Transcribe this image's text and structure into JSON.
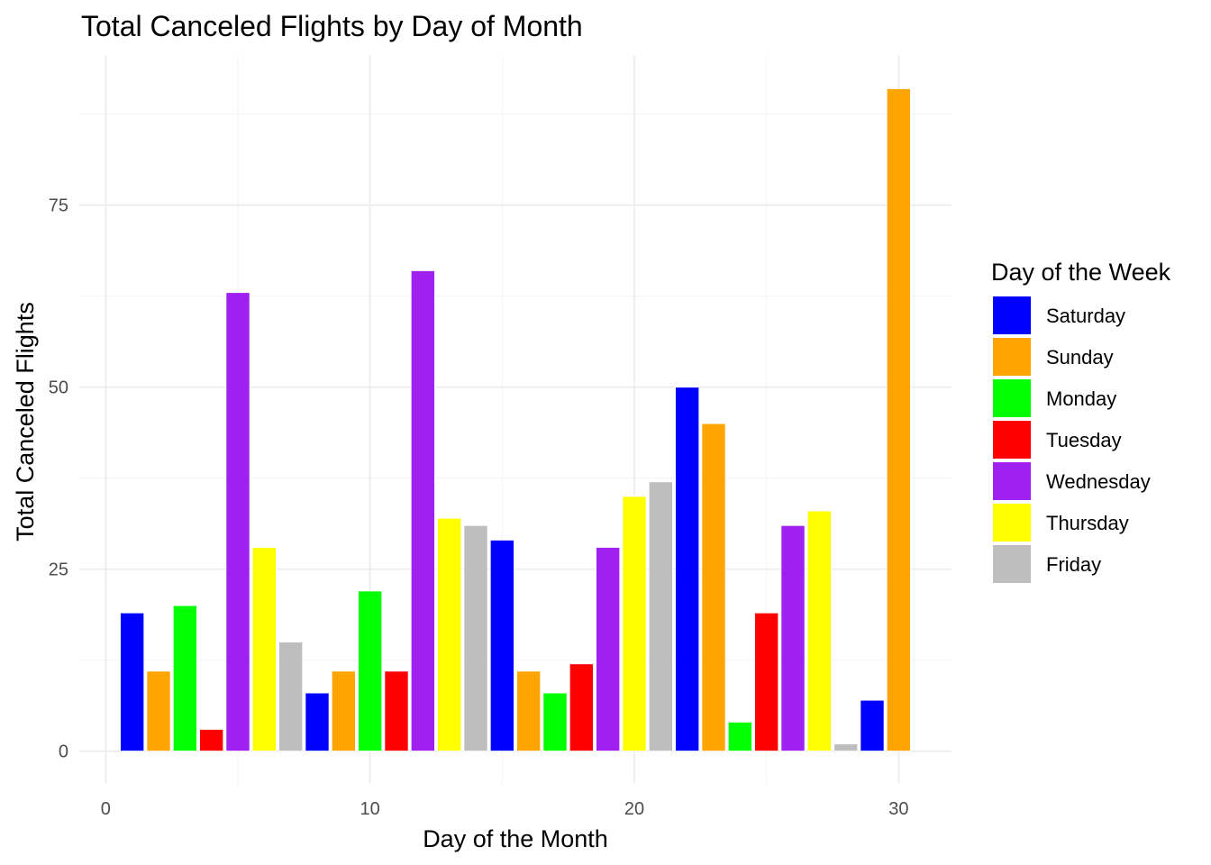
{
  "chart_data": {
    "type": "bar",
    "title": "Total Canceled Flights by Day of Month",
    "xlabel": "Day of the Month",
    "ylabel": "Total Canceled Flights",
    "xlim": [
      -1,
      32
    ],
    "ylim": [
      -4.5,
      95.5
    ],
    "x_ticks": [
      0,
      10,
      20,
      30
    ],
    "y_ticks": [
      0,
      25,
      50,
      75
    ],
    "grid": true,
    "legend": {
      "title": "Day of the Week",
      "placement": "right",
      "entries": [
        {
          "name": "Saturday",
          "color": "#0000FF"
        },
        {
          "name": "Sunday",
          "color": "#FFA500"
        },
        {
          "name": "Monday",
          "color": "#00FF00"
        },
        {
          "name": "Tuesday",
          "color": "#FF0000"
        },
        {
          "name": "Wednesday",
          "color": "#A020F0"
        },
        {
          "name": "Thursday",
          "color": "#FFFF00"
        },
        {
          "name": "Friday",
          "color": "#BEBEBE"
        }
      ]
    },
    "bars": [
      {
        "day": 1,
        "weekday": "Saturday",
        "value": 19
      },
      {
        "day": 2,
        "weekday": "Sunday",
        "value": 11
      },
      {
        "day": 3,
        "weekday": "Monday",
        "value": 20
      },
      {
        "day": 4,
        "weekday": "Tuesday",
        "value": 3
      },
      {
        "day": 5,
        "weekday": "Wednesday",
        "value": 63
      },
      {
        "day": 6,
        "weekday": "Thursday",
        "value": 28
      },
      {
        "day": 7,
        "weekday": "Friday",
        "value": 15
      },
      {
        "day": 8,
        "weekday": "Saturday",
        "value": 8
      },
      {
        "day": 9,
        "weekday": "Sunday",
        "value": 11
      },
      {
        "day": 10,
        "weekday": "Monday",
        "value": 22
      },
      {
        "day": 11,
        "weekday": "Tuesday",
        "value": 11
      },
      {
        "day": 12,
        "weekday": "Wednesday",
        "value": 66
      },
      {
        "day": 13,
        "weekday": "Thursday",
        "value": 32
      },
      {
        "day": 14,
        "weekday": "Friday",
        "value": 31
      },
      {
        "day": 15,
        "weekday": "Saturday",
        "value": 29
      },
      {
        "day": 16,
        "weekday": "Sunday",
        "value": 11
      },
      {
        "day": 17,
        "weekday": "Monday",
        "value": 8
      },
      {
        "day": 18,
        "weekday": "Tuesday",
        "value": 12
      },
      {
        "day": 19,
        "weekday": "Wednesday",
        "value": 28
      },
      {
        "day": 20,
        "weekday": "Thursday",
        "value": 35
      },
      {
        "day": 21,
        "weekday": "Friday",
        "value": 37
      },
      {
        "day": 22,
        "weekday": "Saturday",
        "value": 50
      },
      {
        "day": 23,
        "weekday": "Sunday",
        "value": 45
      },
      {
        "day": 24,
        "weekday": "Monday",
        "value": 4
      },
      {
        "day": 25,
        "weekday": "Tuesday",
        "value": 19
      },
      {
        "day": 26,
        "weekday": "Wednesday",
        "value": 31
      },
      {
        "day": 27,
        "weekday": "Thursday",
        "value": 33
      },
      {
        "day": 28,
        "weekday": "Friday",
        "value": 1
      },
      {
        "day": 29,
        "weekday": "Saturday",
        "value": 7
      },
      {
        "day": 30,
        "weekday": "Sunday",
        "value": 91
      }
    ]
  }
}
